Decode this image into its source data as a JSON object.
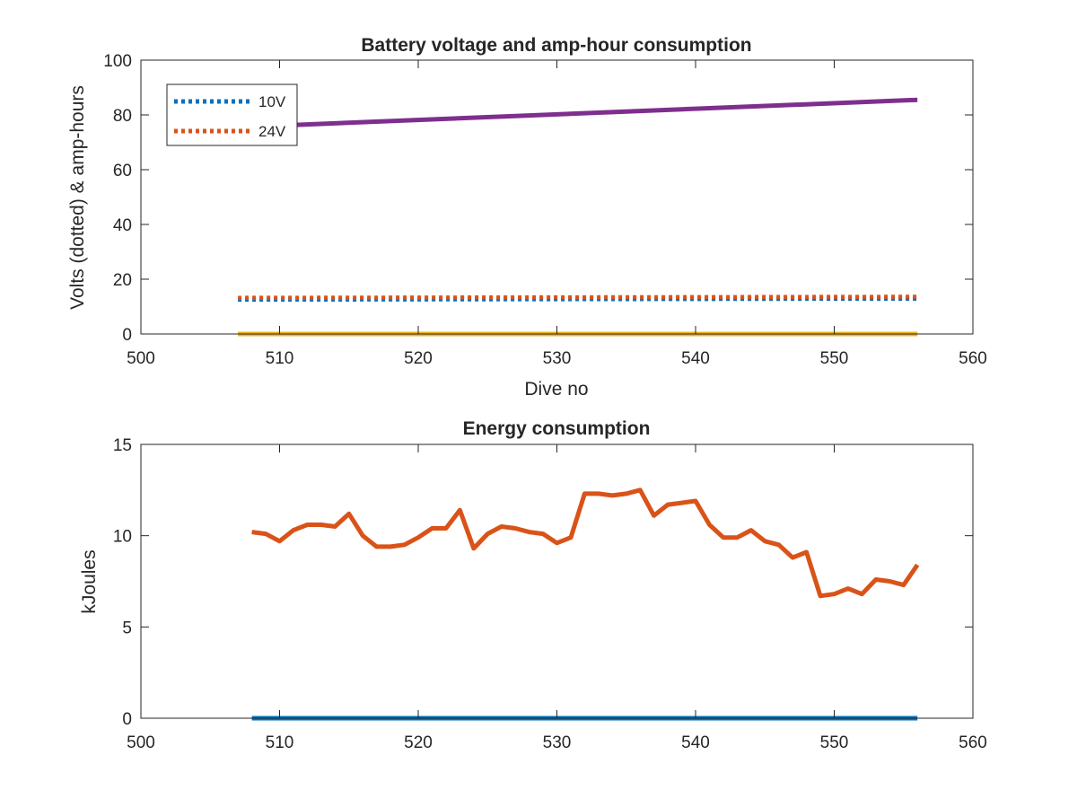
{
  "chart_data": [
    {
      "type": "line",
      "title": "Battery voltage and amp-hour consumption",
      "xlabel": "Dive no",
      "ylabel": "Volts (dotted) & amp-hours",
      "xlim": [
        500,
        560
      ],
      "ylim": [
        0,
        100
      ],
      "xticks": [
        500,
        510,
        520,
        530,
        540,
        550,
        560
      ],
      "yticks": [
        0,
        20,
        40,
        60,
        80,
        100
      ],
      "grid": false,
      "legend": {
        "position": "top-left",
        "entries": [
          "10V",
          "24V"
        ]
      },
      "series": [
        {
          "name": "10V",
          "color": "#0072BD",
          "style": "dotted",
          "x": [
            507,
            556
          ],
          "y": [
            12.5,
            12.9
          ]
        },
        {
          "name": "24V",
          "color": "#D95319",
          "style": "dotted",
          "x": [
            507,
            556
          ],
          "y": [
            13.2,
            13.6
          ]
        },
        {
          "color": "#7E2F8E",
          "style": "solid",
          "x": [
            507,
            556
          ],
          "y": [
            75.5,
            85.5
          ]
        },
        {
          "color": "#EDB120",
          "style": "solid",
          "x": [
            507,
            556
          ],
          "y": [
            0,
            0
          ]
        }
      ]
    },
    {
      "type": "line",
      "title": "Energy consumption",
      "xlabel": "",
      "ylabel": "kJoules",
      "xlim": [
        500,
        560
      ],
      "ylim": [
        0,
        15
      ],
      "xticks": [
        500,
        510,
        520,
        530,
        540,
        550,
        560
      ],
      "yticks": [
        0,
        5,
        10,
        15
      ],
      "grid": false,
      "series": [
        {
          "color": "#0072BD",
          "style": "solid",
          "x": [
            508,
            556
          ],
          "y": [
            0,
            0
          ]
        },
        {
          "color": "#D95319",
          "style": "solid",
          "x": [
            508,
            509,
            510,
            511,
            512,
            513,
            514,
            515,
            516,
            517,
            518,
            519,
            520,
            521,
            522,
            523,
            524,
            525,
            526,
            527,
            528,
            529,
            530,
            531,
            532,
            533,
            534,
            535,
            536,
            537,
            538,
            539,
            540,
            541,
            542,
            543,
            544,
            545,
            546,
            547,
            548,
            549,
            550,
            551,
            552,
            553,
            554,
            555,
            556
          ],
          "y": [
            10.2,
            10.1,
            9.7,
            10.3,
            10.6,
            10.6,
            10.5,
            11.2,
            10.0,
            9.4,
            9.4,
            9.5,
            9.9,
            10.4,
            10.4,
            11.4,
            9.3,
            10.1,
            10.5,
            10.4,
            10.2,
            10.1,
            9.6,
            9.9,
            12.3,
            12.3,
            12.2,
            12.3,
            12.5,
            11.1,
            11.7,
            11.8,
            11.9,
            10.6,
            9.9,
            9.9,
            10.3,
            9.7,
            9.5,
            8.8,
            9.1,
            6.7,
            6.8,
            7.1,
            6.8,
            7.6,
            7.5,
            7.3,
            8.4
          ]
        }
      ]
    }
  ]
}
